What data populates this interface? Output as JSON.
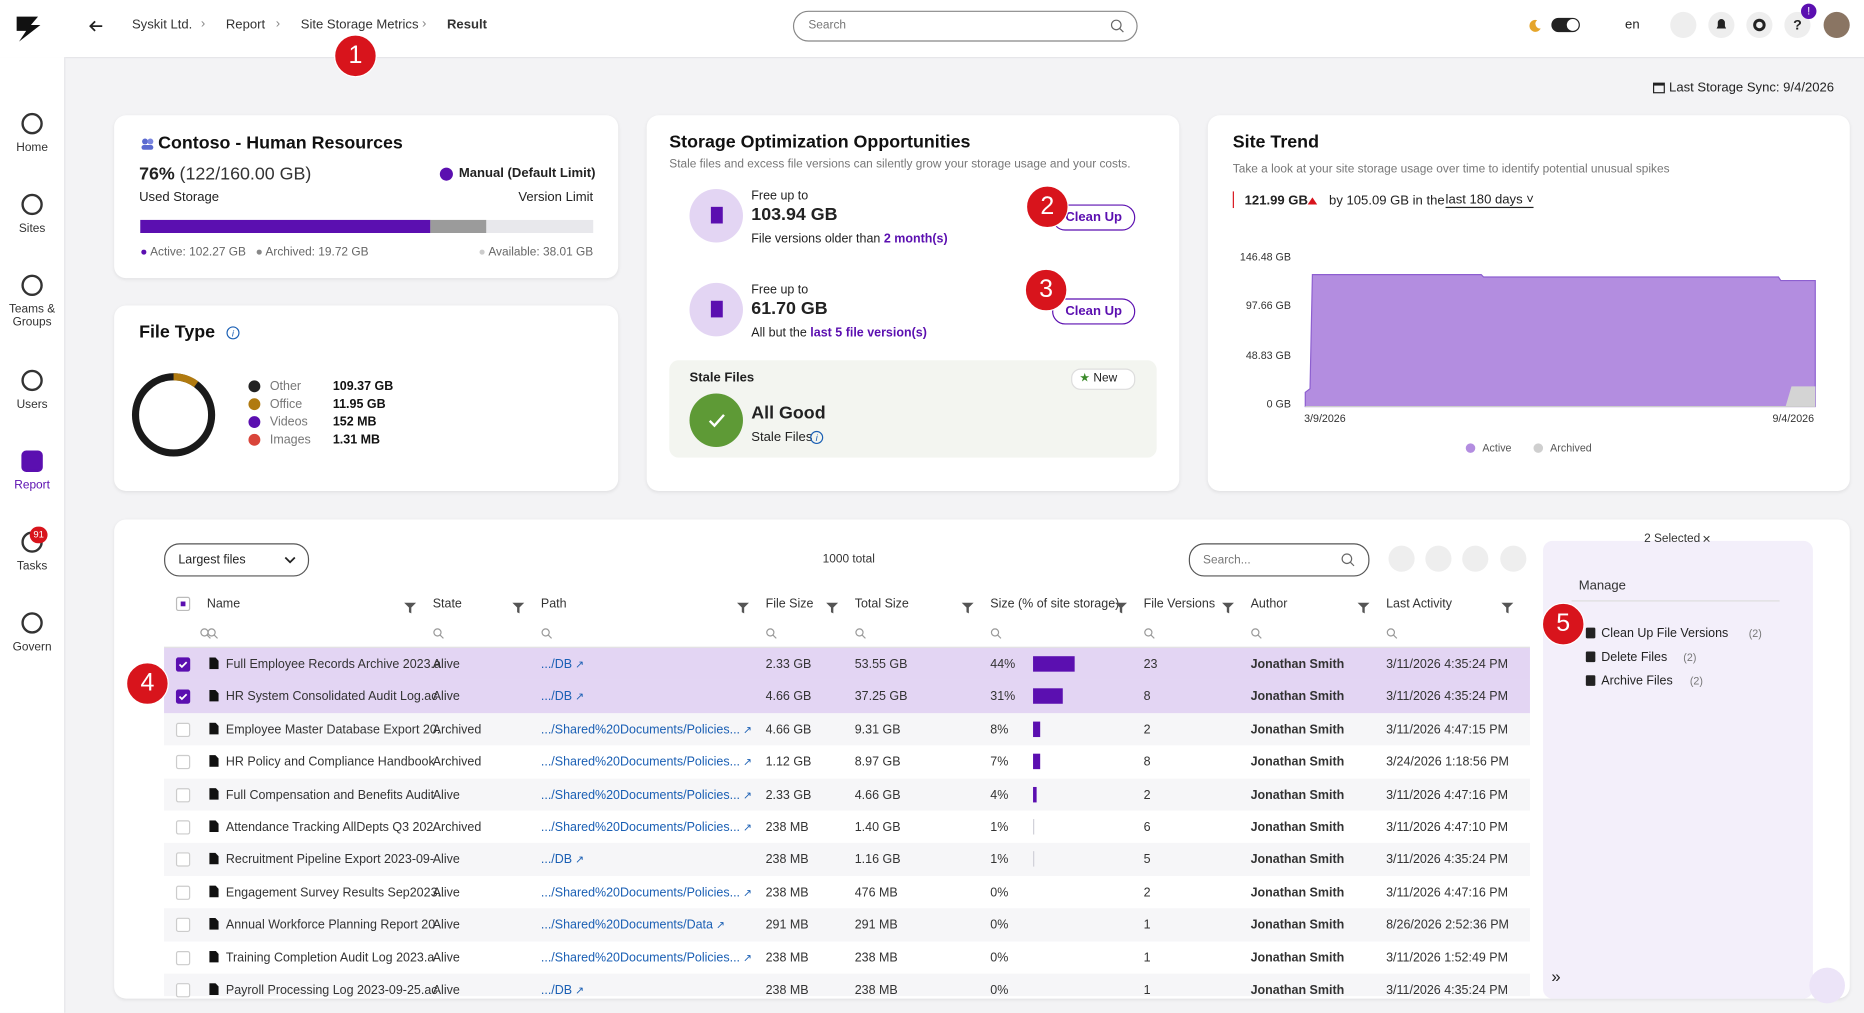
{
  "breadcrumb": [
    "Syskit Ltd.",
    "Report",
    "Site Storage Metrics",
    "Result"
  ],
  "search_placeholder": "Search",
  "language": "en",
  "notification_badge": "!",
  "sidebar": [
    {
      "label": "Home"
    },
    {
      "label": "Sites"
    },
    {
      "label": "Teams & Groups"
    },
    {
      "label": "Users"
    },
    {
      "label": "Report",
      "active": true
    },
    {
      "label": "Tasks",
      "badge": "91"
    },
    {
      "label": "Govern"
    }
  ],
  "last_sync": "Last Storage Sync: 9/4/2026",
  "site_card": {
    "title": "Contoso - Human Resources",
    "percent": "76%",
    "detail": "(122/160.00 GB)",
    "used_label": "Used Storage",
    "limit": "Manual (Default Limit)",
    "limit_label": "Version Limit",
    "active": "Active: 102.27 GB",
    "archived": "Archived: 19.72 GB",
    "available": "Available: 38.01 GB"
  },
  "file_type": {
    "title": "File Type",
    "items": [
      {
        "name": "Other",
        "size": "109.37 GB",
        "color": "#222222"
      },
      {
        "name": "Office",
        "size": "11.95 GB",
        "color": "#b07a10"
      },
      {
        "name": "Videos",
        "size": "152 MB",
        "color": "#5b0fb0"
      },
      {
        "name": "Images",
        "size": "1.31 MB",
        "color": "#d9453a"
      }
    ]
  },
  "optimization": {
    "title": "Storage Optimization Opportunities",
    "subtitle": "Stale files and excess file versions can silently grow your storage usage and your costs.",
    "items": [
      {
        "prefix": "Free up to",
        "amount": "103.94 GB",
        "text": "File versions older than",
        "link": "2 month(s)",
        "button": "Clean Up"
      },
      {
        "prefix": "Free up to",
        "amount": "61.70 GB",
        "text": "All but the",
        "link": "last 5 file version(s)",
        "button": "Clean Up"
      }
    ],
    "stale": {
      "title": "Stale Files",
      "badge": "New",
      "status": "All Good",
      "label": "Stale Files"
    }
  },
  "site_trend": {
    "title": "Site Trend",
    "subtitle": "Take a look at your site storage usage over time to identify potential unusual spikes",
    "value": "121.99 GB",
    "change": "by 105.09 GB in the",
    "period": "last 180 days",
    "yticks": [
      "146.48 GB",
      "97.66 GB",
      "48.83 GB",
      "0 GB"
    ],
    "xticks": [
      "3/9/2026",
      "9/4/2026"
    ],
    "legend": [
      {
        "name": "Active",
        "color": "#b38de0"
      },
      {
        "name": "Archived",
        "color": "#cfcfcf"
      }
    ]
  },
  "table": {
    "view": "Largest files",
    "total": "1000 total",
    "search_placeholder": "Search...",
    "columns": [
      "Name",
      "State",
      "Path",
      "File Size",
      "Total Size",
      "Size (% of site storage)",
      "File Versions",
      "Author",
      "Last Activity"
    ],
    "rows": [
      {
        "name": "Full Employee Records Archive 2023.a",
        "state": "Alive",
        "path": ".../DB",
        "file_size": "2.33 GB",
        "total_size": "53.55 GB",
        "size_pct": "44%",
        "versions": "23",
        "author": "Jonathan Smith",
        "last_activity": "3/11/2026 4:35:24 PM",
        "checked": true
      },
      {
        "name": "HR System Consolidated Audit Log.ac",
        "state": "Alive",
        "path": ".../DB",
        "file_size": "4.66 GB",
        "total_size": "37.25 GB",
        "size_pct": "31%",
        "versions": "8",
        "author": "Jonathan Smith",
        "last_activity": "3/11/2026 4:35:24 PM",
        "checked": true
      },
      {
        "name": "Employee Master Database Export 20.",
        "state": "Archived",
        "path": ".../Shared%20Documents/Policies...",
        "file_size": "4.66 GB",
        "total_size": "9.31 GB",
        "size_pct": "8%",
        "versions": "2",
        "author": "Jonathan Smith",
        "last_activity": "3/11/2026 4:47:15 PM",
        "checked": false
      },
      {
        "name": "HR Policy and Compliance Handbook",
        "state": "Archived",
        "path": ".../Shared%20Documents/Policies...",
        "file_size": "1.12 GB",
        "total_size": "8.97 GB",
        "size_pct": "7%",
        "versions": "8",
        "author": "Jonathan Smith",
        "last_activity": "3/24/2026 1:18:56 PM",
        "checked": false
      },
      {
        "name": "Full Compensation and Benefits Audit",
        "state": "Alive",
        "path": ".../Shared%20Documents/Policies...",
        "file_size": "2.33 GB",
        "total_size": "4.66 GB",
        "size_pct": "4%",
        "versions": "2",
        "author": "Jonathan Smith",
        "last_activity": "3/11/2026 4:47:16 PM",
        "checked": false
      },
      {
        "name": "Attendance Tracking AllDepts Q3 202",
        "state": "Archived",
        "path": ".../Shared%20Documents/Policies...",
        "file_size": "238 MB",
        "total_size": "1.40 GB",
        "size_pct": "1%",
        "versions": "6",
        "author": "Jonathan Smith",
        "last_activity": "3/11/2026 4:47:10 PM",
        "checked": false
      },
      {
        "name": "Recruitment Pipeline Export 2023-09-",
        "state": "Alive",
        "path": ".../DB",
        "file_size": "238 MB",
        "total_size": "1.16 GB",
        "size_pct": "1%",
        "versions": "5",
        "author": "Jonathan Smith",
        "last_activity": "3/11/2026 4:35:24 PM",
        "checked": false
      },
      {
        "name": "Engagement Survey Results Sep2023..",
        "state": "Alive",
        "path": ".../Shared%20Documents/Policies...",
        "file_size": "238 MB",
        "total_size": "476 MB",
        "size_pct": "0%",
        "versions": "2",
        "author": "Jonathan Smith",
        "last_activity": "3/11/2026 4:47:16 PM",
        "checked": false
      },
      {
        "name": "Annual Workforce Planning Report 20",
        "state": "Alive",
        "path": ".../Shared%20Documents/Data",
        "file_size": "291 MB",
        "total_size": "291 MB",
        "size_pct": "0%",
        "versions": "1",
        "author": "Jonathan Smith",
        "last_activity": "8/26/2026 2:52:36 PM",
        "checked": false
      },
      {
        "name": "Training Completion Audit Log 2023.a",
        "state": "Alive",
        "path": ".../Shared%20Documents/Policies...",
        "file_size": "238 MB",
        "total_size": "238 MB",
        "size_pct": "0%",
        "versions": "1",
        "author": "Jonathan Smith",
        "last_activity": "3/11/2026 1:52:49 PM",
        "checked": false
      },
      {
        "name": "Payroll Processing Log 2023-09-25.ac",
        "state": "Alive",
        "path": ".../DB",
        "file_size": "238 MB",
        "total_size": "238 MB",
        "size_pct": "0%",
        "versions": "1",
        "author": "Jonathan Smith",
        "last_activity": "3/11/2026 4:35:24 PM",
        "checked": false
      }
    ]
  },
  "side_panel": {
    "selected": "2 Selected",
    "title": "Manage",
    "actions": [
      {
        "label": "Clean Up File Versions",
        "count": "(2)"
      },
      {
        "label": "Delete Files",
        "count": "(2)"
      },
      {
        "label": "Archive Files",
        "count": "(2)"
      }
    ]
  },
  "callouts": [
    "1",
    "2",
    "3",
    "4",
    "5"
  ]
}
